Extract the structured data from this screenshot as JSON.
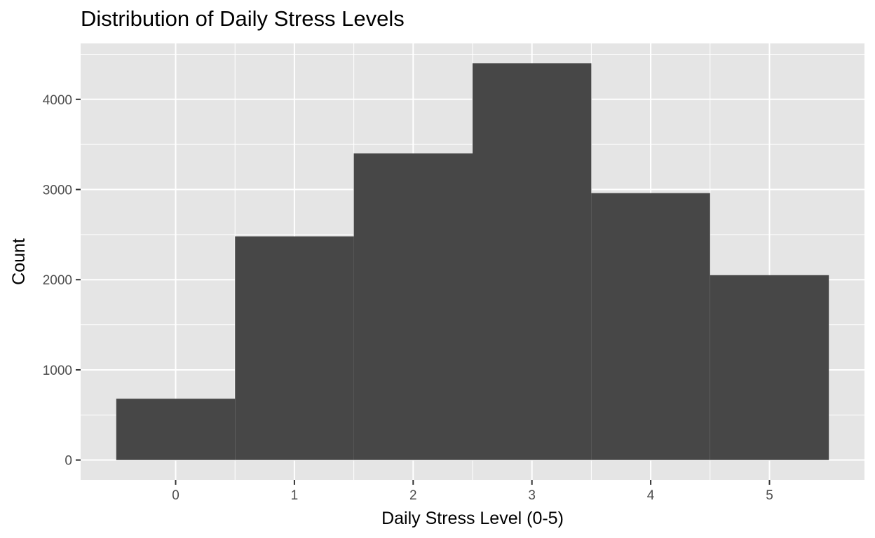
{
  "chart_data": {
    "type": "bar",
    "title": "Distribution of Daily Stress Levels",
    "xlabel": "Daily Stress Level (0-5)",
    "ylabel": "Count",
    "categories": [
      "0",
      "1",
      "2",
      "3",
      "4",
      "5"
    ],
    "x": [
      0,
      1,
      2,
      3,
      4,
      5
    ],
    "values": [
      680,
      2480,
      3400,
      4400,
      2960,
      2050
    ],
    "bin_width": 1,
    "xlim": [
      -0.8,
      5.8
    ],
    "ylim": [
      -220,
      4620
    ],
    "x_ticks": [
      0,
      1,
      2,
      3,
      4,
      5
    ],
    "y_ticks": [
      0,
      1000,
      2000,
      3000,
      4000
    ],
    "grid": true,
    "legend": "none",
    "colors": {
      "bar": "#474747",
      "panel": "#e5e5e5",
      "grid": "#ffffff",
      "tick": "#333333"
    }
  }
}
